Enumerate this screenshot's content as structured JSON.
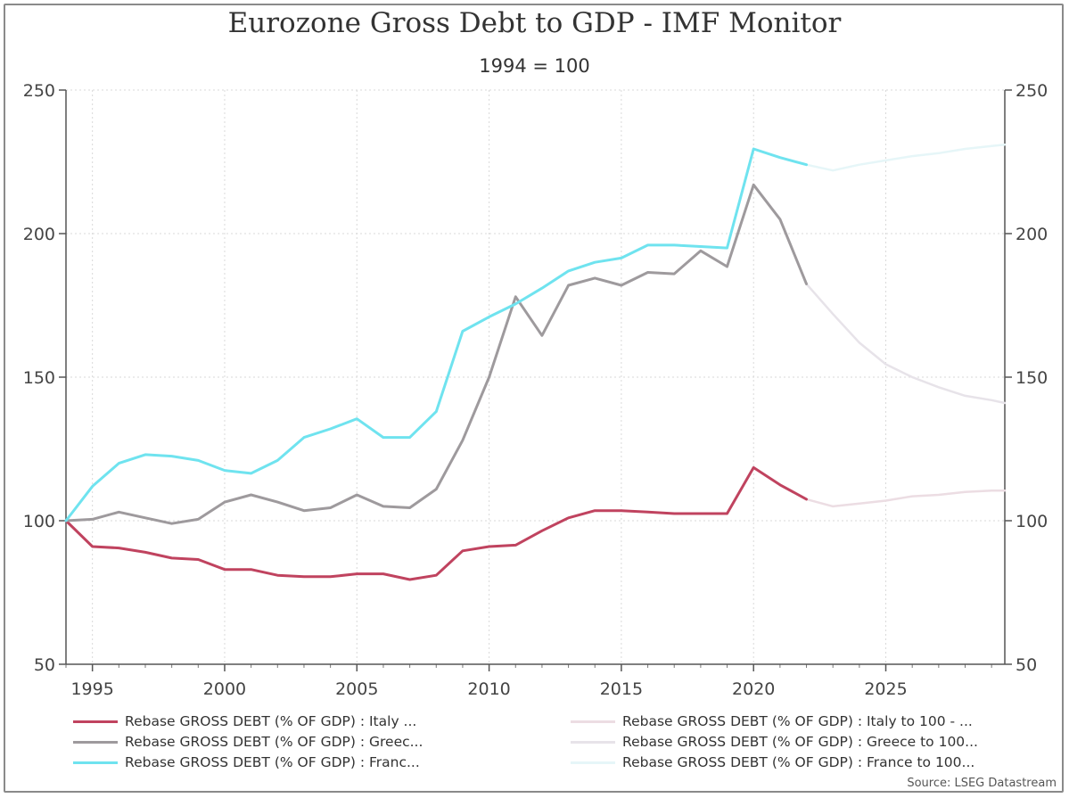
{
  "title": "Eurozone Gross Debt to GDP - IMF Monitor",
  "subtitle": "1994 = 100",
  "source": "Source: LSEG Datastream",
  "chart_data": {
    "type": "line",
    "title": "Eurozone Gross Debt to GDP - IMF Monitor",
    "subtitle": "1994 = 100",
    "ylim": [
      50,
      250
    ],
    "xlim": [
      1994,
      2029.5
    ],
    "y_ticks": [
      50,
      100,
      150,
      200,
      250
    ],
    "x_ticks": [
      1995,
      2000,
      2005,
      2010,
      2015,
      2020,
      2025
    ],
    "grid": true,
    "y_axis_both_sides": true,
    "legend_position": "bottom",
    "series": [
      {
        "name": "Rebase GROSS DEBT (% OF GDP) : Italy ...",
        "color": "#c0435f",
        "style": "solid",
        "x": [
          1994,
          1995,
          1996,
          1997,
          1998,
          1999,
          2000,
          2001,
          2002,
          2003,
          2004,
          2005,
          2006,
          2007,
          2008,
          2009,
          2010,
          2011,
          2012,
          2013,
          2014,
          2015,
          2016,
          2017,
          2018,
          2019,
          2020,
          2021,
          2022
        ],
        "values": [
          100,
          91,
          90.5,
          89,
          87,
          86.5,
          83,
          83,
          81,
          80.5,
          80.5,
          81.5,
          81.5,
          79.5,
          81,
          89.5,
          91,
          91.5,
          96.5,
          101,
          103.5,
          103.5,
          103,
          102.5,
          102.5,
          102.5,
          118.5,
          112.5,
          107.5
        ]
      },
      {
        "name": "Rebase GROSS DEBT (% OF GDP) : Greec...",
        "color": "#9e9a9d",
        "style": "solid",
        "x": [
          1994,
          1995,
          1996,
          1997,
          1998,
          1999,
          2000,
          2001,
          2002,
          2003,
          2004,
          2005,
          2006,
          2007,
          2008,
          2009,
          2010,
          2011,
          2012,
          2013,
          2014,
          2015,
          2016,
          2017,
          2018,
          2019,
          2020,
          2021,
          2022
        ],
        "values": [
          100,
          100.5,
          103,
          101,
          99,
          100.5,
          106.5,
          109,
          106.5,
          103.5,
          104.5,
          109,
          105,
          104.5,
          111,
          128,
          150,
          178,
          164.5,
          182,
          184.5,
          182,
          186.5,
          186,
          194,
          188.5,
          217,
          205,
          182.5
        ]
      },
      {
        "name": "Rebase GROSS DEBT (% OF GDP) : Franc...",
        "color": "#6fe3ef",
        "style": "solid",
        "x": [
          1994,
          1995,
          1996,
          1997,
          1998,
          1999,
          2000,
          2001,
          2002,
          2003,
          2004,
          2005,
          2006,
          2007,
          2008,
          2009,
          2010,
          2011,
          2012,
          2013,
          2014,
          2015,
          2016,
          2017,
          2018,
          2019,
          2020,
          2021,
          2022
        ],
        "values": [
          100,
          112,
          120,
          123,
          122.5,
          121,
          117.5,
          116.5,
          121,
          129,
          132,
          135.5,
          129,
          129,
          138,
          166,
          171,
          175.5,
          181,
          187,
          190,
          191.5,
          196,
          196,
          195.5,
          195,
          229.5,
          226.5,
          224
        ]
      },
      {
        "name": "Rebase GROSS DEBT (% OF GDP) : Italy to 100 - ...",
        "color": "#ecdde3",
        "style": "solid",
        "x": [
          2022,
          2023,
          2024,
          2025,
          2026,
          2027,
          2028,
          2029,
          2029.5
        ],
        "values": [
          107.5,
          105,
          106,
          107,
          108.5,
          109,
          110,
          110.5,
          110.5
        ]
      },
      {
        "name": "Rebase GROSS DEBT (% OF GDP) : Greece to 100...",
        "color": "#e7e3e9",
        "style": "solid",
        "x": [
          2022,
          2023,
          2024,
          2025,
          2026,
          2027,
          2028,
          2029,
          2029.5
        ],
        "values": [
          182.5,
          172,
          162,
          154.5,
          150,
          146.5,
          143.5,
          142,
          141
        ]
      },
      {
        "name": "Rebase GROSS DEBT (% OF GDP) : France to 100...",
        "color": "#e6f6f8",
        "style": "solid",
        "x": [
          2022,
          2023,
          2024,
          2025,
          2026,
          2027,
          2028,
          2029,
          2029.5
        ],
        "values": [
          224,
          222,
          224,
          225.5,
          227,
          228,
          229.5,
          230.5,
          231
        ]
      }
    ]
  }
}
